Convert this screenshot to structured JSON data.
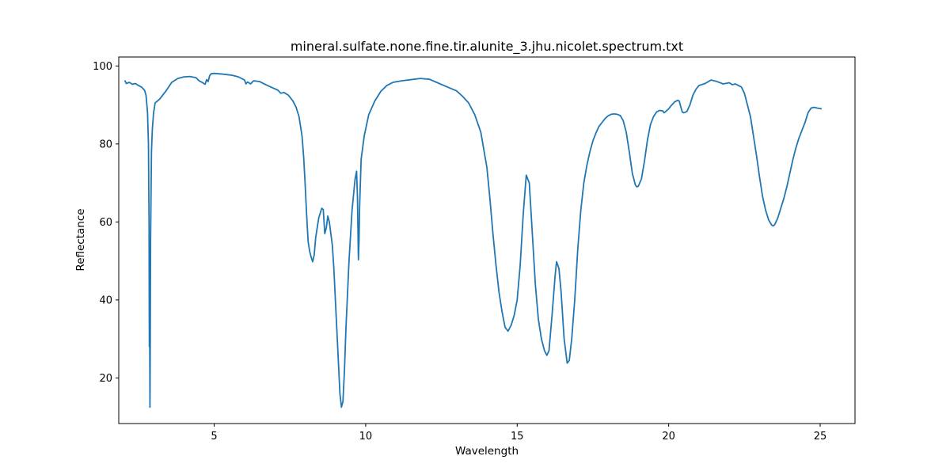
{
  "chart_data": {
    "type": "line",
    "title": "mineral.sulfate.none.fine.tir.alunite_3.jhu.nicolet.spectrum.txt",
    "xlabel": "Wavelength",
    "ylabel": "Reflectance",
    "xlim": [
      1.85,
      26.15
    ],
    "ylim": [
      8.3,
      102.3
    ],
    "xticks": [
      5,
      10,
      15,
      20,
      25
    ],
    "yticks": [
      20,
      40,
      60,
      80,
      100
    ],
    "grid": false,
    "legend": "none",
    "series": [
      {
        "color": "#1f77b4",
        "points": [
          [
            2.05,
            96.3
          ],
          [
            2.1,
            95.5
          ],
          [
            2.2,
            95.8
          ],
          [
            2.3,
            95.3
          ],
          [
            2.4,
            95.5
          ],
          [
            2.5,
            95.0
          ],
          [
            2.6,
            94.6
          ],
          [
            2.7,
            93.8
          ],
          [
            2.75,
            92.5
          ],
          [
            2.8,
            88.0
          ],
          [
            2.83,
            80.0
          ],
          [
            2.85,
            60.0
          ],
          [
            2.86,
            28.0
          ],
          [
            2.87,
            36.0
          ],
          [
            2.88,
            12.5
          ],
          [
            2.89,
            30.0
          ],
          [
            2.9,
            55.0
          ],
          [
            2.93,
            78.0
          ],
          [
            2.96,
            84.0
          ],
          [
            3.0,
            88.0
          ],
          [
            3.05,
            90.5
          ],
          [
            3.2,
            91.5
          ],
          [
            3.4,
            93.5
          ],
          [
            3.6,
            95.8
          ],
          [
            3.8,
            96.8
          ],
          [
            4.0,
            97.2
          ],
          [
            4.2,
            97.3
          ],
          [
            4.4,
            97.0
          ],
          [
            4.5,
            96.2
          ],
          [
            4.6,
            95.8
          ],
          [
            4.7,
            95.3
          ],
          [
            4.75,
            96.5
          ],
          [
            4.8,
            96.0
          ],
          [
            4.85,
            97.5
          ],
          [
            4.9,
            98.0
          ],
          [
            5.0,
            98.1
          ],
          [
            5.3,
            97.9
          ],
          [
            5.6,
            97.6
          ],
          [
            5.8,
            97.2
          ],
          [
            6.0,
            96.4
          ],
          [
            6.05,
            95.4
          ],
          [
            6.1,
            95.9
          ],
          [
            6.2,
            95.4
          ],
          [
            6.3,
            96.2
          ],
          [
            6.5,
            96.0
          ],
          [
            6.7,
            95.2
          ],
          [
            6.9,
            94.5
          ],
          [
            7.1,
            93.8
          ],
          [
            7.2,
            93.0
          ],
          [
            7.3,
            93.2
          ],
          [
            7.45,
            92.5
          ],
          [
            7.6,
            91.0
          ],
          [
            7.7,
            89.5
          ],
          [
            7.8,
            87.0
          ],
          [
            7.9,
            82.0
          ],
          [
            7.95,
            77.0
          ],
          [
            8.0,
            70.0
          ],
          [
            8.05,
            62.0
          ],
          [
            8.1,
            55.0
          ],
          [
            8.15,
            52.5
          ],
          [
            8.2,
            51.0
          ],
          [
            8.25,
            49.8
          ],
          [
            8.3,
            51.5
          ],
          [
            8.35,
            56.0
          ],
          [
            8.45,
            61.0
          ],
          [
            8.55,
            63.5
          ],
          [
            8.6,
            63.2
          ],
          [
            8.65,
            57.0
          ],
          [
            8.7,
            58.5
          ],
          [
            8.75,
            61.5
          ],
          [
            8.8,
            60.0
          ],
          [
            8.9,
            54.0
          ],
          [
            8.95,
            48.0
          ],
          [
            9.0,
            40.0
          ],
          [
            9.05,
            32.0
          ],
          [
            9.1,
            24.0
          ],
          [
            9.15,
            16.0
          ],
          [
            9.2,
            12.5
          ],
          [
            9.25,
            14.0
          ],
          [
            9.3,
            22.0
          ],
          [
            9.35,
            33.0
          ],
          [
            9.45,
            50.0
          ],
          [
            9.55,
            63.0
          ],
          [
            9.65,
            71.0
          ],
          [
            9.7,
            73.0
          ],
          [
            9.73,
            66.0
          ],
          [
            9.76,
            50.3
          ],
          [
            9.78,
            55.0
          ],
          [
            9.8,
            64.0
          ],
          [
            9.85,
            76.0
          ],
          [
            9.95,
            82.0
          ],
          [
            10.1,
            87.5
          ],
          [
            10.3,
            91.0
          ],
          [
            10.5,
            93.5
          ],
          [
            10.7,
            95.0
          ],
          [
            10.9,
            95.8
          ],
          [
            11.2,
            96.2
          ],
          [
            11.5,
            96.5
          ],
          [
            11.8,
            96.8
          ],
          [
            12.1,
            96.6
          ],
          [
            12.4,
            95.6
          ],
          [
            12.7,
            94.6
          ],
          [
            13.0,
            93.6
          ],
          [
            13.2,
            92.2
          ],
          [
            13.4,
            90.5
          ],
          [
            13.6,
            87.5
          ],
          [
            13.8,
            83.0
          ],
          [
            14.0,
            74.0
          ],
          [
            14.1,
            66.0
          ],
          [
            14.2,
            57.0
          ],
          [
            14.3,
            49.0
          ],
          [
            14.4,
            42.0
          ],
          [
            14.5,
            37.0
          ],
          [
            14.6,
            33.0
          ],
          [
            14.7,
            32.0
          ],
          [
            14.8,
            33.5
          ],
          [
            14.9,
            36.0
          ],
          [
            15.0,
            40.0
          ],
          [
            15.1,
            49.0
          ],
          [
            15.2,
            62.0
          ],
          [
            15.3,
            72.0
          ],
          [
            15.4,
            70.0
          ],
          [
            15.5,
            57.0
          ],
          [
            15.6,
            44.0
          ],
          [
            15.7,
            35.0
          ],
          [
            15.8,
            30.0
          ],
          [
            15.9,
            27.0
          ],
          [
            15.98,
            25.8
          ],
          [
            16.05,
            27.0
          ],
          [
            16.15,
            36.0
          ],
          [
            16.25,
            46.0
          ],
          [
            16.3,
            49.8
          ],
          [
            16.38,
            48.0
          ],
          [
            16.45,
            42.0
          ],
          [
            16.55,
            30.0
          ],
          [
            16.65,
            23.8
          ],
          [
            16.72,
            24.5
          ],
          [
            16.8,
            30.0
          ],
          [
            16.9,
            40.0
          ],
          [
            17.0,
            53.0
          ],
          [
            17.1,
            63.0
          ],
          [
            17.2,
            70.0
          ],
          [
            17.3,
            74.5
          ],
          [
            17.4,
            78.0
          ],
          [
            17.5,
            80.8
          ],
          [
            17.6,
            82.8
          ],
          [
            17.7,
            84.5
          ],
          [
            17.8,
            85.5
          ],
          [
            17.9,
            86.5
          ],
          [
            18.0,
            87.2
          ],
          [
            18.1,
            87.6
          ],
          [
            18.2,
            87.7
          ],
          [
            18.3,
            87.6
          ],
          [
            18.4,
            87.3
          ],
          [
            18.5,
            86.0
          ],
          [
            18.6,
            83.0
          ],
          [
            18.7,
            78.0
          ],
          [
            18.8,
            72.5
          ],
          [
            18.9,
            69.5
          ],
          [
            18.95,
            69.0
          ],
          [
            19.0,
            69.2
          ],
          [
            19.1,
            71.0
          ],
          [
            19.2,
            75.5
          ],
          [
            19.3,
            81.0
          ],
          [
            19.4,
            85.0
          ],
          [
            19.5,
            87.0
          ],
          [
            19.6,
            88.2
          ],
          [
            19.7,
            88.6
          ],
          [
            19.8,
            88.5
          ],
          [
            19.85,
            88.0
          ],
          [
            19.9,
            88.3
          ],
          [
            20.0,
            89.0
          ],
          [
            20.1,
            90.0
          ],
          [
            20.2,
            90.8
          ],
          [
            20.3,
            91.2
          ],
          [
            20.35,
            91.0
          ],
          [
            20.4,
            89.5
          ],
          [
            20.45,
            88.2
          ],
          [
            20.5,
            88.0
          ],
          [
            20.6,
            88.3
          ],
          [
            20.7,
            90.0
          ],
          [
            20.8,
            92.5
          ],
          [
            20.9,
            94.0
          ],
          [
            21.0,
            95.0
          ],
          [
            21.2,
            95.5
          ],
          [
            21.4,
            96.4
          ],
          [
            21.6,
            96.0
          ],
          [
            21.8,
            95.4
          ],
          [
            22.0,
            95.7
          ],
          [
            22.1,
            95.2
          ],
          [
            22.2,
            95.4
          ],
          [
            22.3,
            95.0
          ],
          [
            22.4,
            94.6
          ],
          [
            22.5,
            93.0
          ],
          [
            22.6,
            90.0
          ],
          [
            22.7,
            87.0
          ],
          [
            22.8,
            82.0
          ],
          [
            22.9,
            77.0
          ],
          [
            23.0,
            71.5
          ],
          [
            23.1,
            66.5
          ],
          [
            23.2,
            63.0
          ],
          [
            23.3,
            60.5
          ],
          [
            23.4,
            59.2
          ],
          [
            23.45,
            59.0
          ],
          [
            23.5,
            59.3
          ],
          [
            23.6,
            61.0
          ],
          [
            23.7,
            63.5
          ],
          [
            23.8,
            66.0
          ],
          [
            23.9,
            69.0
          ],
          [
            24.0,
            72.5
          ],
          [
            24.1,
            76.0
          ],
          [
            24.2,
            79.0
          ],
          [
            24.3,
            81.5
          ],
          [
            24.4,
            83.5
          ],
          [
            24.5,
            85.5
          ],
          [
            24.6,
            88.0
          ],
          [
            24.7,
            89.2
          ],
          [
            24.8,
            89.4
          ],
          [
            24.9,
            89.2
          ],
          [
            25.05,
            89.0
          ]
        ]
      }
    ]
  }
}
